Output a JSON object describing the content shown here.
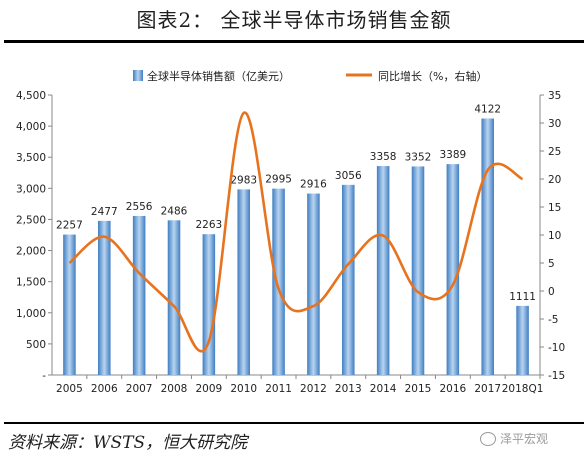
{
  "title": "图表2：  全球半导体市场销售金额",
  "source": "资料来源：WSTS，恒大研究院",
  "watermark": "泽平宏观",
  "colors": {
    "bar": "#4a86c6",
    "bar_light": "#a9c8ea",
    "line": "#e8731f",
    "axis": "#888888",
    "text": "#222222"
  },
  "chart_data": {
    "type": "bar",
    "categories": [
      "2005",
      "2006",
      "2007",
      "2008",
      "2009",
      "2010",
      "2011",
      "2012",
      "2013",
      "2014",
      "2015",
      "2016",
      "2017",
      "2018Q1"
    ],
    "series": [
      {
        "name": "全球半导体销售额（亿美元）",
        "type": "bar",
        "axis": "left",
        "values": [
          2257,
          2477,
          2556,
          2486,
          2263,
          2983,
          2995,
          2916,
          3056,
          3358,
          3352,
          3389,
          4122,
          1111
        ]
      },
      {
        "name": "同比增长（%，右轴）",
        "type": "line",
        "axis": "right",
        "values": [
          5,
          9.7,
          3.2,
          -2.7,
          -9.0,
          31.8,
          0.4,
          -2.7,
          4.8,
          9.9,
          -0.2,
          1.1,
          21.6,
          20
        ]
      }
    ],
    "y_left": {
      "min": 0,
      "max": 4500,
      "ticks": [
        "-",
        "500",
        "1,000",
        "1,500",
        "2,000",
        "2,500",
        "3,000",
        "3,500",
        "4,000",
        "4,500"
      ]
    },
    "y_right": {
      "min": -15,
      "max": 35,
      "ticks": [
        "-15",
        "-10",
        "-5",
        "0",
        "5",
        "10",
        "15",
        "20",
        "25",
        "30",
        "35"
      ]
    },
    "data_labels": [
      "2257",
      "2477",
      "2556",
      "2486",
      "2263",
      "2983",
      "2995",
      "2916",
      "3056",
      "3358",
      "3352",
      "3389",
      "4122",
      "1111"
    ],
    "legend_position": "top"
  }
}
